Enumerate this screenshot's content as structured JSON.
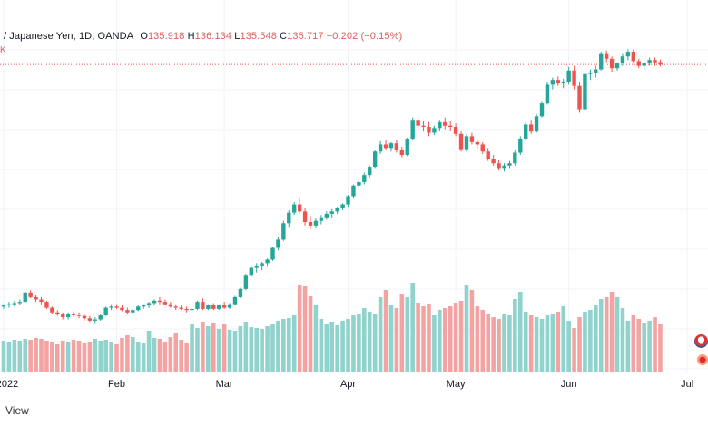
{
  "header": {
    "symbol_tail": "/ Japanese Yen, 1D, OANDA",
    "o_label": "O",
    "o_value": "135.918",
    "h_label": "H",
    "h_value": "136.134",
    "l_label": "L",
    "l_value": "135.548",
    "c_label": "C",
    "c_value": "135.717",
    "change": "−0.202 (−0.15%)",
    "volume_label": "K"
  },
  "footer": {
    "label": "View"
  },
  "colors": {
    "up": "#26a69a",
    "down": "#ef5350",
    "up_volume": "#8fd3cc",
    "down_volume": "#f4a3a3",
    "grid": "#f0f3fa",
    "price_line": "#ef5350"
  },
  "chart_data": {
    "type": "candlestick",
    "interval": "1D",
    "y_range": [
      112.5,
      137.5
    ],
    "price_line": 135.717,
    "volume_range": [
      0,
      1.0
    ],
    "x_ticks": [
      {
        "label": "2022",
        "index": 0
      },
      {
        "label": "Feb",
        "index": 21
      },
      {
        "label": "Mar",
        "index": 41
      },
      {
        "label": "Apr",
        "index": 64
      },
      {
        "label": "May",
        "index": 84
      },
      {
        "label": "Jun",
        "index": 105
      },
      {
        "label": "Jul",
        "index": 127
      }
    ],
    "candles": [
      [
        115.1,
        115.3,
        114.9,
        115.2
      ],
      [
        115.2,
        115.5,
        115.0,
        115.3
      ],
      [
        115.3,
        115.6,
        115.1,
        115.4
      ],
      [
        115.4,
        115.7,
        115.2,
        115.5
      ],
      [
        115.5,
        116.4,
        115.4,
        116.3
      ],
      [
        116.3,
        116.5,
        115.8,
        115.9
      ],
      [
        115.9,
        116.1,
        115.5,
        115.7
      ],
      [
        115.7,
        115.9,
        115.3,
        115.5
      ],
      [
        115.5,
        115.6,
        114.9,
        115.0
      ],
      [
        115.0,
        115.1,
        114.5,
        114.6
      ],
      [
        114.6,
        114.8,
        114.3,
        114.5
      ],
      [
        114.5,
        114.6,
        114.0,
        114.2
      ],
      [
        114.2,
        114.6,
        114.0,
        114.5
      ],
      [
        114.5,
        114.7,
        114.2,
        114.4
      ],
      [
        114.4,
        114.6,
        114.1,
        114.3
      ],
      [
        114.3,
        114.5,
        113.9,
        114.1
      ],
      [
        114.1,
        114.3,
        113.8,
        113.9
      ],
      [
        113.9,
        114.2,
        113.7,
        114.0
      ],
      [
        114.0,
        114.5,
        113.9,
        114.4
      ],
      [
        114.4,
        115.1,
        114.3,
        115.0
      ],
      [
        115.0,
        115.3,
        114.8,
        115.1
      ],
      [
        115.1,
        115.3,
        114.9,
        115.0
      ],
      [
        115.0,
        115.2,
        114.7,
        114.8
      ],
      [
        114.8,
        115.0,
        114.5,
        114.6
      ],
      [
        114.6,
        114.9,
        114.4,
        114.8
      ],
      [
        114.8,
        115.2,
        114.7,
        115.1
      ],
      [
        115.1,
        115.3,
        114.9,
        115.2
      ],
      [
        115.2,
        115.5,
        115.0,
        115.4
      ],
      [
        115.4,
        115.7,
        115.2,
        115.6
      ],
      [
        115.6,
        115.9,
        115.3,
        115.5
      ],
      [
        115.5,
        115.7,
        115.2,
        115.3
      ],
      [
        115.3,
        115.5,
        115.0,
        115.1
      ],
      [
        115.1,
        115.3,
        114.8,
        115.0
      ],
      [
        115.0,
        115.2,
        114.8,
        114.9
      ],
      [
        114.9,
        115.1,
        114.6,
        114.8
      ],
      [
        114.8,
        115.0,
        114.6,
        114.9
      ],
      [
        114.9,
        115.6,
        114.8,
        115.5
      ],
      [
        115.5,
        115.8,
        114.8,
        114.9
      ],
      [
        114.9,
        115.3,
        114.8,
        115.2
      ],
      [
        115.2,
        115.4,
        114.8,
        114.9
      ],
      [
        114.9,
        115.3,
        114.8,
        115.2
      ],
      [
        115.2,
        115.5,
        114.9,
        115.0
      ],
      [
        115.0,
        115.4,
        114.9,
        115.3
      ],
      [
        115.3,
        116.0,
        115.2,
        115.9
      ],
      [
        115.9,
        116.7,
        115.8,
        116.6
      ],
      [
        116.6,
        117.9,
        116.5,
        117.8
      ],
      [
        117.8,
        118.6,
        117.6,
        118.4
      ],
      [
        118.4,
        118.8,
        118.0,
        118.6
      ],
      [
        118.6,
        118.9,
        118.2,
        118.8
      ],
      [
        118.8,
        119.2,
        118.5,
        119.1
      ],
      [
        119.1,
        120.2,
        119.0,
        120.1
      ],
      [
        120.1,
        121.0,
        119.9,
        120.8
      ],
      [
        120.8,
        122.4,
        120.7,
        122.2
      ],
      [
        122.2,
        123.3,
        121.9,
        123.1
      ],
      [
        123.1,
        124.0,
        122.9,
        123.8
      ],
      [
        123.8,
        124.4,
        123.0,
        123.2
      ],
      [
        123.2,
        123.5,
        122.0,
        122.3
      ],
      [
        122.3,
        122.8,
        121.7,
        122.0
      ],
      [
        122.0,
        122.6,
        121.8,
        122.4
      ],
      [
        122.4,
        122.9,
        122.1,
        122.7
      ],
      [
        122.7,
        123.2,
        122.5,
        123.0
      ],
      [
        123.0,
        123.4,
        122.7,
        123.2
      ],
      [
        123.2,
        123.6,
        123.0,
        123.5
      ],
      [
        123.5,
        123.9,
        123.3,
        123.8
      ],
      [
        123.8,
        124.6,
        123.6,
        124.5
      ],
      [
        124.5,
        125.5,
        124.3,
        125.4
      ],
      [
        125.4,
        125.9,
        125.0,
        125.7
      ],
      [
        125.7,
        126.5,
        125.5,
        126.3
      ],
      [
        126.3,
        127.1,
        126.1,
        127.0
      ],
      [
        127.0,
        128.4,
        126.9,
        128.3
      ],
      [
        128.3,
        129.2,
        128.1,
        128.9
      ],
      [
        128.9,
        129.3,
        128.4,
        128.6
      ],
      [
        128.6,
        129.1,
        128.3,
        129.0
      ],
      [
        129.0,
        129.3,
        128.2,
        128.4
      ],
      [
        128.4,
        128.7,
        127.8,
        128.0
      ],
      [
        128.0,
        129.5,
        127.9,
        129.4
      ],
      [
        129.4,
        131.2,
        129.3,
        131.0
      ],
      [
        131.0,
        131.3,
        130.2,
        130.5
      ],
      [
        130.5,
        130.9,
        130.0,
        130.4
      ],
      [
        130.4,
        130.8,
        129.6,
        129.9
      ],
      [
        129.9,
        130.5,
        129.7,
        130.3
      ],
      [
        130.3,
        131.0,
        130.1,
        130.8
      ],
      [
        130.8,
        131.2,
        130.2,
        130.5
      ],
      [
        130.5,
        130.9,
        130.1,
        130.4
      ],
      [
        130.4,
        130.7,
        129.6,
        129.8
      ],
      [
        129.8,
        130.0,
        128.3,
        128.5
      ],
      [
        128.5,
        129.8,
        128.3,
        129.6
      ],
      [
        129.6,
        129.9,
        128.9,
        129.1
      ],
      [
        129.1,
        129.3,
        128.6,
        128.9
      ],
      [
        128.9,
        129.1,
        128.1,
        128.3
      ],
      [
        128.3,
        128.6,
        127.5,
        127.7
      ],
      [
        127.7,
        128.0,
        127.1,
        127.3
      ],
      [
        127.3,
        127.6,
        126.7,
        126.9
      ],
      [
        126.9,
        127.3,
        126.6,
        127.1
      ],
      [
        127.1,
        127.5,
        126.9,
        127.3
      ],
      [
        127.3,
        128.4,
        127.1,
        128.2
      ],
      [
        128.2,
        129.6,
        128.0,
        129.4
      ],
      [
        129.4,
        130.8,
        129.3,
        130.6
      ],
      [
        130.6,
        131.0,
        129.8,
        130.0
      ],
      [
        130.0,
        131.5,
        129.9,
        131.3
      ],
      [
        131.3,
        132.6,
        131.2,
        132.4
      ],
      [
        132.4,
        134.2,
        132.3,
        134.0
      ],
      [
        134.0,
        134.6,
        133.6,
        134.4
      ],
      [
        134.4,
        134.7,
        133.9,
        134.1
      ],
      [
        134.1,
        134.5,
        133.7,
        134.2
      ],
      [
        134.2,
        135.5,
        134.0,
        135.2
      ],
      [
        135.2,
        135.6,
        133.6,
        133.9
      ],
      [
        133.9,
        134.2,
        131.6,
        131.9
      ],
      [
        131.9,
        135.1,
        131.8,
        134.9
      ],
      [
        134.9,
        135.3,
        134.4,
        135.0
      ],
      [
        135.0,
        135.6,
        134.6,
        135.3
      ],
      [
        135.3,
        136.8,
        135.2,
        136.6
      ],
      [
        136.6,
        136.9,
        135.9,
        136.2
      ],
      [
        136.2,
        136.4,
        135.1,
        135.4
      ],
      [
        135.4,
        135.9,
        135.2,
        135.8
      ],
      [
        135.8,
        136.6,
        135.6,
        136.4
      ],
      [
        136.4,
        137.0,
        136.1,
        136.8
      ],
      [
        136.8,
        137.0,
        135.8,
        136.0
      ],
      [
        136.0,
        136.2,
        135.4,
        135.6
      ],
      [
        135.6,
        136.0,
        135.3,
        135.8
      ],
      [
        135.8,
        136.3,
        135.6,
        136.1
      ],
      [
        136.1,
        136.3,
        135.6,
        135.9
      ],
      [
        135.918,
        136.134,
        135.548,
        135.717
      ]
    ],
    "volumes": [
      0.34,
      0.33,
      0.35,
      0.34,
      0.36,
      0.35,
      0.37,
      0.36,
      0.34,
      0.33,
      0.31,
      0.34,
      0.33,
      0.35,
      0.34,
      0.32,
      0.33,
      0.36,
      0.34,
      0.35,
      0.33,
      0.31,
      0.37,
      0.4,
      0.38,
      0.33,
      0.32,
      0.45,
      0.37,
      0.36,
      0.33,
      0.38,
      0.43,
      0.35,
      0.32,
      0.52,
      0.48,
      0.55,
      0.5,
      0.54,
      0.47,
      0.52,
      0.46,
      0.45,
      0.5,
      0.55,
      0.49,
      0.48,
      0.47,
      0.5,
      0.53,
      0.56,
      0.58,
      0.59,
      0.62,
      0.96,
      0.94,
      0.83,
      0.74,
      0.58,
      0.52,
      0.55,
      0.51,
      0.56,
      0.58,
      0.62,
      0.64,
      0.7,
      0.66,
      0.64,
      0.82,
      0.9,
      0.74,
      0.7,
      0.86,
      0.82,
      0.98,
      0.76,
      0.72,
      0.75,
      0.62,
      0.68,
      0.7,
      0.72,
      0.76,
      0.78,
      0.96,
      0.9,
      0.72,
      0.68,
      0.64,
      0.6,
      0.58,
      0.64,
      0.62,
      0.8,
      0.88,
      0.66,
      0.62,
      0.6,
      0.58,
      0.62,
      0.64,
      0.66,
      0.72,
      0.56,
      0.48,
      0.6,
      0.66,
      0.68,
      0.74,
      0.8,
      0.82,
      0.88,
      0.82,
      0.7,
      0.56,
      0.62,
      0.58,
      0.54,
      0.56,
      0.6,
      0.52
    ]
  }
}
